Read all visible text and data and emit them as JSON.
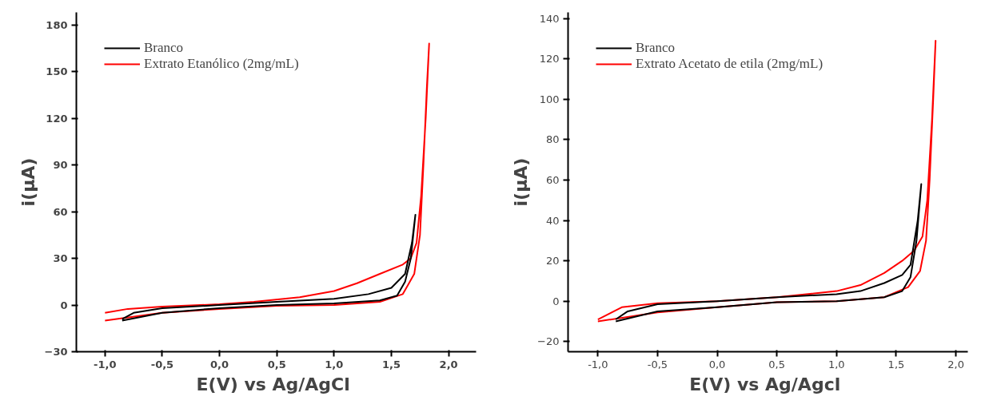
{
  "chart_data": [
    {
      "type": "line",
      "xlabel": "E(V)  vs Ag/AgCl",
      "ylabel": "i(μA)",
      "legend": "top left",
      "grid": false,
      "xlim": [
        -1.25,
        2.24
      ],
      "ylim": [
        -30,
        188
      ],
      "xticks": [
        {
          "value": -1.0,
          "label": "-1,0"
        },
        {
          "value": -0.5,
          "label": "-0,5"
        },
        {
          "value": 0.0,
          "label": "0,0"
        },
        {
          "value": 0.5,
          "label": "0,5"
        },
        {
          "value": 1.0,
          "label": "1,0"
        },
        {
          "value": 1.5,
          "label": "1,5"
        },
        {
          "value": 2.0,
          "label": "2,0"
        }
      ],
      "yticks": [
        -30,
        0,
        30,
        60,
        90,
        120,
        150,
        180
      ],
      "series": [
        {
          "name": "Branco",
          "color": "#000000",
          "x": [
            -0.85,
            -0.5,
            0,
            0.5,
            1.0,
            1.4,
            1.55,
            1.62,
            1.67,
            1.71,
            1.68,
            1.62,
            1.5,
            1.3,
            1.0,
            0.5,
            0,
            -0.5,
            -0.75,
            -0.85
          ],
          "values": [
            -10,
            -5,
            -2,
            0,
            1,
            3,
            6,
            15,
            30,
            58,
            40,
            20,
            11,
            7,
            4,
            2,
            0,
            -2,
            -5,
            -9
          ]
        },
        {
          "name": "Extrato Etanólico (2mg/mL)",
          "color": "#ff0000",
          "x": [
            -1.0,
            -0.5,
            0,
            0.5,
            1.0,
            1.4,
            1.6,
            1.7,
            1.75,
            1.78,
            1.81,
            1.83,
            1.8,
            1.76,
            1.72,
            1.67,
            1.6,
            1.4,
            1.2,
            1.0,
            0.7,
            0.3,
            0,
            -0.5,
            -0.8,
            -1.0
          ],
          "values": [
            -10,
            -5,
            -2.5,
            -0.5,
            0,
            2,
            7,
            20,
            45,
            90,
            140,
            168,
            120,
            70,
            40,
            30,
            26,
            20,
            14,
            9,
            5,
            2,
            0.5,
            -1,
            -2.5,
            -5
          ]
        }
      ]
    },
    {
      "type": "line",
      "xlabel": "E(V)  vs Ag/Agcl",
      "ylabel": "i(μA)",
      "legend": "top left",
      "grid": false,
      "xlim": [
        -1.25,
        2.1
      ],
      "ylim": [
        -25,
        143
      ],
      "xticks": [
        {
          "value": -1.0,
          "label": "-1,0"
        },
        {
          "value": -0.5,
          "label": "-0,5"
        },
        {
          "value": 0.0,
          "label": "0,0"
        },
        {
          "value": 0.5,
          "label": "0,5"
        },
        {
          "value": 1.0,
          "label": "1,0"
        },
        {
          "value": 1.5,
          "label": "1,5"
        },
        {
          "value": 2.0,
          "label": "2,0"
        }
      ],
      "yticks": [
        -20,
        0,
        20,
        40,
        60,
        80,
        100,
        120,
        140
      ],
      "series": [
        {
          "name": "Branco",
          "color": "#000000",
          "x": [
            -0.85,
            -0.5,
            0,
            0.5,
            1.0,
            1.4,
            1.55,
            1.62,
            1.67,
            1.71,
            1.68,
            1.62,
            1.55,
            1.4,
            1.2,
            1.0,
            0.5,
            0,
            -0.5,
            -0.75,
            -0.85
          ],
          "values": [
            -10,
            -5,
            -3,
            -0.5,
            0,
            2,
            5,
            12,
            30,
            58,
            40,
            18,
            13,
            9,
            5,
            3.5,
            2,
            0,
            -1.5,
            -5,
            -9
          ]
        },
        {
          "name": "Extrato Acetato de etila (2mg/mL)",
          "color": "#ff0000",
          "x": [
            -1.0,
            -0.5,
            0,
            0.5,
            1.0,
            1.4,
            1.6,
            1.7,
            1.75,
            1.78,
            1.81,
            1.83,
            1.8,
            1.76,
            1.72,
            1.65,
            1.55,
            1.4,
            1.2,
            1.0,
            0.5,
            0,
            -0.5,
            -0.8,
            -1.0
          ],
          "values": [
            -10,
            -5.5,
            -3,
            -0.5,
            0,
            2,
            7,
            15,
            30,
            60,
            100,
            129,
            90,
            50,
            32,
            25,
            20,
            14,
            8,
            5,
            2,
            0,
            -1,
            -3,
            -9
          ]
        }
      ]
    }
  ]
}
